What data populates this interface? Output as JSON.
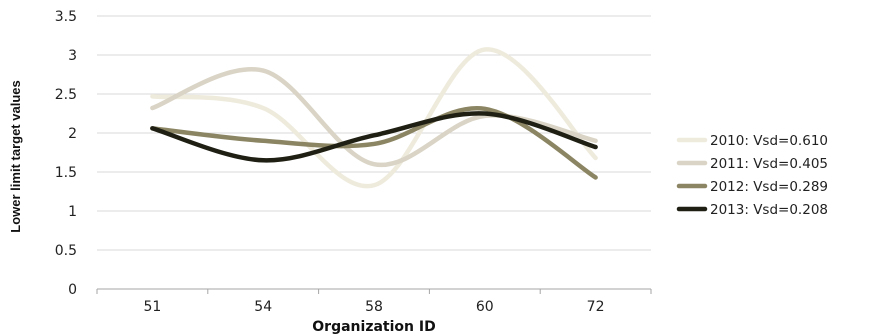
{
  "chart_data": {
    "type": "line",
    "smooth": true,
    "categories": [
      "51",
      "54",
      "58",
      "60",
      "72"
    ],
    "xlabel": "Organization ID",
    "ylabel": "Lower limit target values",
    "ylim": [
      0,
      3.5
    ],
    "yticks": [
      0,
      0.5,
      1,
      1.5,
      2,
      2.5,
      3,
      3.5
    ],
    "ytick_labels": [
      "0",
      "0.5",
      "1",
      "1.5",
      "2",
      "2.5",
      "3",
      "3.5"
    ],
    "grid": true,
    "legend_position": "right",
    "series": [
      {
        "name": "2010: Vsd=0.610",
        "values": [
          2.47,
          2.32,
          1.33,
          3.07,
          1.68
        ],
        "color": "#eeebdd"
      },
      {
        "name": "2011: Vsd=0.405",
        "values": [
          2.32,
          2.8,
          1.6,
          2.22,
          1.9
        ],
        "color": "#d9d4c5"
      },
      {
        "name": "2012: Vsd=0.289",
        "values": [
          2.06,
          1.9,
          1.86,
          2.31,
          1.43
        ],
        "color": "#8b8563"
      },
      {
        "name": "2013: Vsd=0.208",
        "values": [
          2.06,
          1.65,
          1.97,
          2.25,
          1.82
        ],
        "color": "#1f1f14"
      }
    ]
  }
}
